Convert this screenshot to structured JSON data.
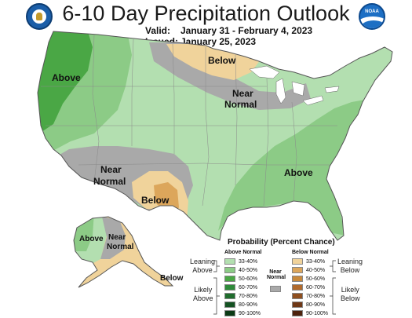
{
  "header": {
    "title": "6-10 Day Precipitation Outlook",
    "valid_label": "Valid:",
    "valid_value": "January 31 - February 4, 2023",
    "issued_label": "Issued:",
    "issued_value": "January 25, 2023",
    "logo_right_text": "NOAA"
  },
  "map": {
    "labels": {
      "west_above": "Above",
      "north_below": "Below",
      "great_lakes_near": "Near",
      "great_lakes_normal": "Normal",
      "sw_near": "Near",
      "sw_normal": "Normal",
      "texas_below": "Below",
      "southeast_above": "Above",
      "ak_above": "Above",
      "ak_near": "Near",
      "ak_normal": "Normal",
      "ak_below": "Below"
    },
    "colors": {
      "above_33_40": "#b3dfb0",
      "above_40_50": "#8ccb86",
      "above_50_60": "#4aa745",
      "near_normal": "#a9a9a9",
      "below_33_40": "#f0d39b",
      "below_40_50": "#dca65b",
      "ocean": "#ffffff",
      "land_outline": "#555555",
      "state_line": "#8a8a8a"
    }
  },
  "legend": {
    "title": "Probability (Percent Chance)",
    "above_header": "Above Normal",
    "below_header": "Below Normal",
    "near_header_1": "Near",
    "near_header_2": "Normal",
    "leaning_above_1": "Leaning",
    "leaning_above_2": "Above",
    "likely_above_1": "Likely",
    "likely_above_2": "Above",
    "leaning_below_1": "Leaning",
    "leaning_below_2": "Below",
    "likely_below_1": "Likely",
    "likely_below_2": "Below",
    "above_items": [
      {
        "label": "33-40%",
        "color": "#b3dfb0"
      },
      {
        "label": "40-50%",
        "color": "#8ccb86"
      },
      {
        "label": "50-60%",
        "color": "#4aa745"
      },
      {
        "label": "60-70%",
        "color": "#2e8a3a"
      },
      {
        "label": "70-80%",
        "color": "#206d2d"
      },
      {
        "label": "80-90%",
        "color": "#145222"
      },
      {
        "label": "90-100%",
        "color": "#0b3a15"
      }
    ],
    "below_items": [
      {
        "label": "33-40%",
        "color": "#f0d39b"
      },
      {
        "label": "40-50%",
        "color": "#dca65b"
      },
      {
        "label": "50-60%",
        "color": "#c98a3c"
      },
      {
        "label": "60-70%",
        "color": "#b16a2c"
      },
      {
        "label": "70-80%",
        "color": "#8f4f1f"
      },
      {
        "label": "80-90%",
        "color": "#6e3716"
      },
      {
        "label": "90-100%",
        "color": "#4d220d"
      }
    ],
    "near_color": "#a9a9a9"
  }
}
